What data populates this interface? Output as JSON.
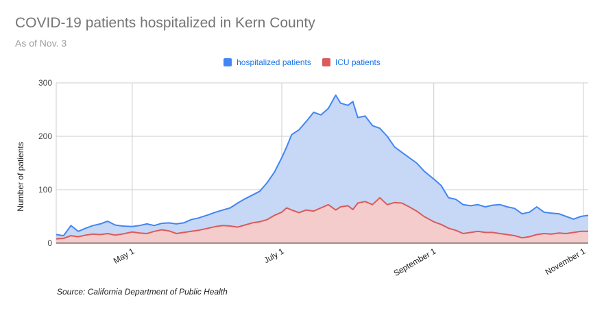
{
  "title": "COVID-19 patients hospitalized in Kern County",
  "subtitle": "As of Nov. 3",
  "source": "Source: California Department of Public Health",
  "legend": {
    "hospitalized": "hospitalized patients",
    "icu": "ICU patients"
  },
  "colors": {
    "hospitalized_line": "#4285f4",
    "hospitalized_fill": "#c6d8f6",
    "icu_line": "#db5a5a",
    "icu_fill": "#f4cccc",
    "grid": "#cccccc",
    "axis": "#333333"
  },
  "chart_data": {
    "type": "area",
    "ylabel": "Number of patients",
    "xlabel": "",
    "ylim": [
      0,
      300
    ],
    "y_ticks": [
      0,
      100,
      200,
      300
    ],
    "x_ticks": [
      {
        "label": "May 1",
        "date": "2020-05-01"
      },
      {
        "label": "July 1",
        "date": "2020-07-01"
      },
      {
        "label": "September 1",
        "date": "2020-09-01"
      },
      {
        "label": "November 1",
        "date": "2020-11-01"
      }
    ],
    "x_range": [
      "2020-03-31",
      "2020-11-03"
    ],
    "grid": true,
    "legend_position": "top",
    "series": [
      {
        "name": "hospitalized patients",
        "points": [
          [
            "2020-03-31",
            16
          ],
          [
            "2020-04-03",
            14
          ],
          [
            "2020-04-06",
            33
          ],
          [
            "2020-04-09",
            22
          ],
          [
            "2020-04-12",
            28
          ],
          [
            "2020-04-15",
            33
          ],
          [
            "2020-04-18",
            36
          ],
          [
            "2020-04-21",
            41
          ],
          [
            "2020-04-24",
            34
          ],
          [
            "2020-04-27",
            32
          ],
          [
            "2020-05-01",
            31
          ],
          [
            "2020-05-04",
            33
          ],
          [
            "2020-05-07",
            36
          ],
          [
            "2020-05-10",
            33
          ],
          [
            "2020-05-13",
            37
          ],
          [
            "2020-05-16",
            38
          ],
          [
            "2020-05-19",
            36
          ],
          [
            "2020-05-22",
            38
          ],
          [
            "2020-05-25",
            44
          ],
          [
            "2020-05-28",
            47
          ],
          [
            "2020-06-01",
            53
          ],
          [
            "2020-06-04",
            58
          ],
          [
            "2020-06-07",
            62
          ],
          [
            "2020-06-10",
            66
          ],
          [
            "2020-06-13",
            75
          ],
          [
            "2020-06-16",
            83
          ],
          [
            "2020-06-19",
            90
          ],
          [
            "2020-06-22",
            97
          ],
          [
            "2020-06-25",
            113
          ],
          [
            "2020-06-28",
            133
          ],
          [
            "2020-07-01",
            160
          ],
          [
            "2020-07-03",
            180
          ],
          [
            "2020-07-05",
            203
          ],
          [
            "2020-07-08",
            212
          ],
          [
            "2020-07-11",
            228
          ],
          [
            "2020-07-14",
            245
          ],
          [
            "2020-07-17",
            240
          ],
          [
            "2020-07-20",
            252
          ],
          [
            "2020-07-23",
            277
          ],
          [
            "2020-07-25",
            262
          ],
          [
            "2020-07-28",
            258
          ],
          [
            "2020-07-30",
            265
          ],
          [
            "2020-08-01",
            235
          ],
          [
            "2020-08-04",
            238
          ],
          [
            "2020-08-07",
            220
          ],
          [
            "2020-08-10",
            215
          ],
          [
            "2020-08-13",
            200
          ],
          [
            "2020-08-16",
            180
          ],
          [
            "2020-08-19",
            170
          ],
          [
            "2020-08-22",
            160
          ],
          [
            "2020-08-25",
            150
          ],
          [
            "2020-08-28",
            135
          ],
          [
            "2020-09-01",
            120
          ],
          [
            "2020-09-04",
            108
          ],
          [
            "2020-09-07",
            85
          ],
          [
            "2020-09-10",
            82
          ],
          [
            "2020-09-13",
            72
          ],
          [
            "2020-09-16",
            70
          ],
          [
            "2020-09-19",
            72
          ],
          [
            "2020-09-22",
            68
          ],
          [
            "2020-09-25",
            71
          ],
          [
            "2020-09-28",
            72
          ],
          [
            "2020-10-01",
            68
          ],
          [
            "2020-10-04",
            65
          ],
          [
            "2020-10-07",
            55
          ],
          [
            "2020-10-10",
            58
          ],
          [
            "2020-10-13",
            68
          ],
          [
            "2020-10-16",
            58
          ],
          [
            "2020-10-19",
            56
          ],
          [
            "2020-10-22",
            55
          ],
          [
            "2020-10-25",
            50
          ],
          [
            "2020-10-28",
            45
          ],
          [
            "2020-10-31",
            50
          ],
          [
            "2020-11-03",
            52
          ]
        ]
      },
      {
        "name": "ICU patients",
        "points": [
          [
            "2020-03-31",
            8
          ],
          [
            "2020-04-03",
            9
          ],
          [
            "2020-04-06",
            14
          ],
          [
            "2020-04-09",
            12
          ],
          [
            "2020-04-12",
            15
          ],
          [
            "2020-04-15",
            17
          ],
          [
            "2020-04-18",
            16
          ],
          [
            "2020-04-21",
            18
          ],
          [
            "2020-04-24",
            15
          ],
          [
            "2020-04-27",
            17
          ],
          [
            "2020-05-01",
            21
          ],
          [
            "2020-05-04",
            19
          ],
          [
            "2020-05-07",
            18
          ],
          [
            "2020-05-10",
            22
          ],
          [
            "2020-05-13",
            25
          ],
          [
            "2020-05-16",
            23
          ],
          [
            "2020-05-19",
            18
          ],
          [
            "2020-05-22",
            20
          ],
          [
            "2020-05-25",
            22
          ],
          [
            "2020-05-28",
            24
          ],
          [
            "2020-06-01",
            28
          ],
          [
            "2020-06-04",
            31
          ],
          [
            "2020-06-07",
            33
          ],
          [
            "2020-06-10",
            32
          ],
          [
            "2020-06-13",
            30
          ],
          [
            "2020-06-16",
            34
          ],
          [
            "2020-06-19",
            38
          ],
          [
            "2020-06-22",
            40
          ],
          [
            "2020-06-25",
            44
          ],
          [
            "2020-06-28",
            52
          ],
          [
            "2020-07-01",
            58
          ],
          [
            "2020-07-03",
            66
          ],
          [
            "2020-07-05",
            62
          ],
          [
            "2020-07-08",
            57
          ],
          [
            "2020-07-11",
            62
          ],
          [
            "2020-07-14",
            60
          ],
          [
            "2020-07-17",
            66
          ],
          [
            "2020-07-20",
            72
          ],
          [
            "2020-07-23",
            62
          ],
          [
            "2020-07-25",
            68
          ],
          [
            "2020-07-28",
            70
          ],
          [
            "2020-07-30",
            63
          ],
          [
            "2020-08-01",
            75
          ],
          [
            "2020-08-04",
            78
          ],
          [
            "2020-08-07",
            72
          ],
          [
            "2020-08-10",
            85
          ],
          [
            "2020-08-13",
            72
          ],
          [
            "2020-08-16",
            76
          ],
          [
            "2020-08-19",
            75
          ],
          [
            "2020-08-22",
            68
          ],
          [
            "2020-08-25",
            60
          ],
          [
            "2020-08-28",
            50
          ],
          [
            "2020-09-01",
            40
          ],
          [
            "2020-09-04",
            35
          ],
          [
            "2020-09-07",
            28
          ],
          [
            "2020-09-10",
            24
          ],
          [
            "2020-09-13",
            18
          ],
          [
            "2020-09-16",
            20
          ],
          [
            "2020-09-19",
            22
          ],
          [
            "2020-09-22",
            20
          ],
          [
            "2020-09-25",
            20
          ],
          [
            "2020-09-28",
            18
          ],
          [
            "2020-10-01",
            16
          ],
          [
            "2020-10-04",
            14
          ],
          [
            "2020-10-07",
            10
          ],
          [
            "2020-10-10",
            12
          ],
          [
            "2020-10-13",
            16
          ],
          [
            "2020-10-16",
            18
          ],
          [
            "2020-10-19",
            17
          ],
          [
            "2020-10-22",
            19
          ],
          [
            "2020-10-25",
            18
          ],
          [
            "2020-10-28",
            20
          ],
          [
            "2020-10-31",
            22
          ],
          [
            "2020-11-03",
            22
          ]
        ]
      }
    ]
  }
}
